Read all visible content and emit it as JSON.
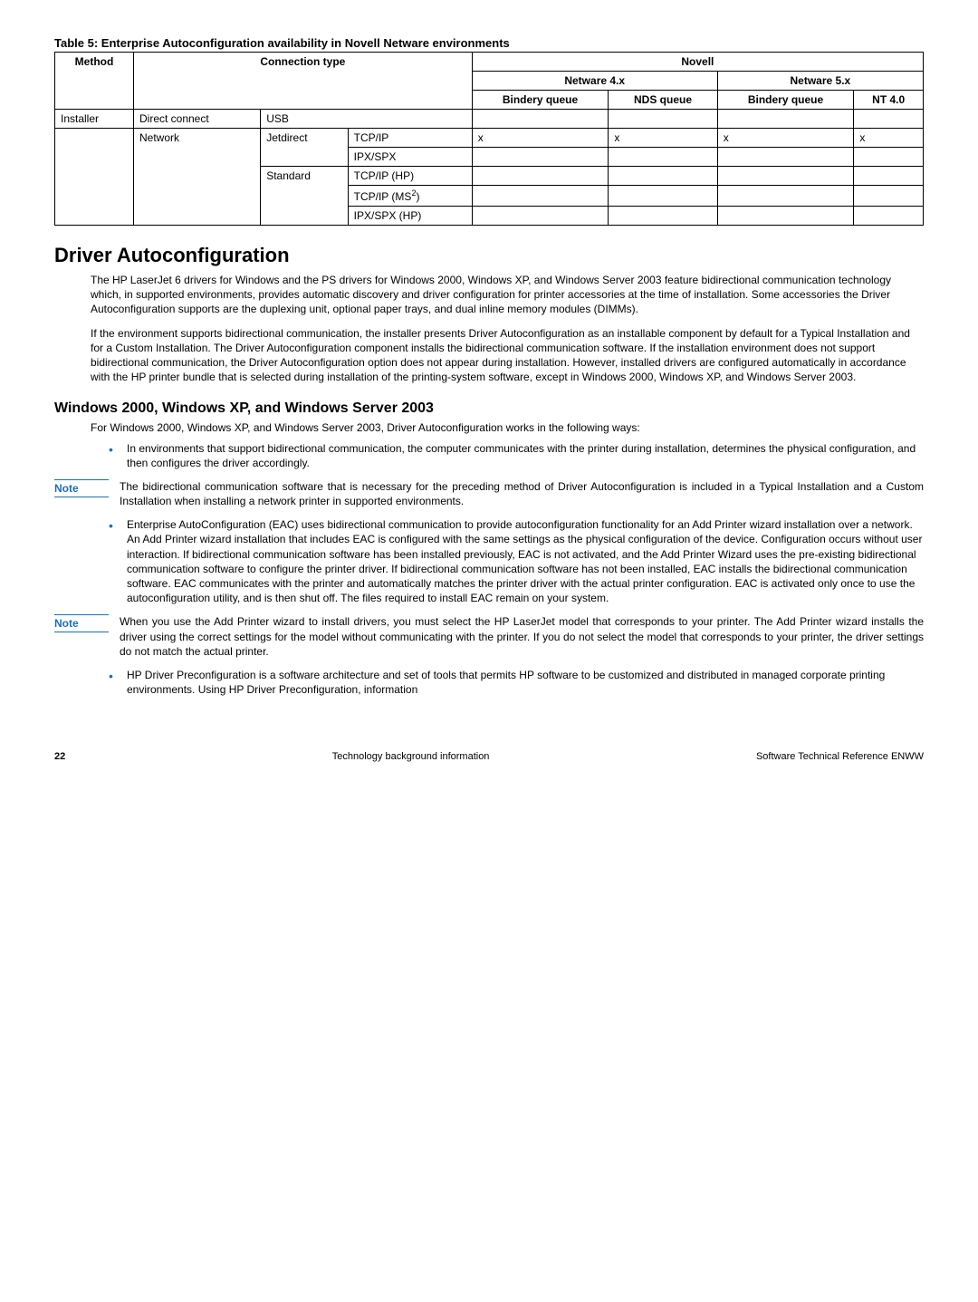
{
  "table": {
    "caption": "Table 5: Enterprise Autoconfiguration availability in Novell Netware environments",
    "headers": {
      "method": "Method",
      "connection_type": "Connection type",
      "novell": "Novell",
      "netware4": "Netware 4.x",
      "netware5": "Netware 5.x",
      "bindery_queue": "Bindery queue",
      "nds_queue": "NDS queue",
      "bindery_queue2": "Bindery queue",
      "nt40": "NT 4.0"
    },
    "rows": {
      "installer": "Installer",
      "direct_connect": "Direct connect",
      "usb": "USB",
      "network": "Network",
      "jetdirect": "Jetdirect",
      "tcpip": "TCP/IP",
      "ipxspx": "IPX/SPX",
      "standard": "Standard",
      "tcpip_hp": "TCP/IP (HP)",
      "tcpip_ms2": "TCP/IP (MS",
      "ms2_suffix": ")",
      "ipxspx_hp": "IPX/SPX (HP)",
      "x": "x"
    }
  },
  "h1": "Driver Autoconfiguration",
  "p1": "The HP LaserJet 6 drivers for Windows and the PS drivers for Windows 2000, Windows XP, and Windows Server 2003 feature bidirectional communication technology which, in supported environments, provides automatic discovery and driver configuration for printer accessories at the time of installation. Some accessories the Driver Autoconfiguration supports are the duplexing unit, optional paper trays, and dual inline memory modules (DIMMs).",
  "p2": "If the environment supports bidirectional communication, the installer presents Driver Autoconfiguration as an installable component by default for a Typical Installation and for a Custom Installation. The Driver Autoconfiguration component installs the bidirectional communication software. If the installation environment does not support bidirectional communication, the Driver Autoconfiguration option does not appear during installation. However, installed drivers are configured automatically in accordance with the HP printer bundle that is selected during installation of the printing-system software, except in Windows 2000, Windows XP, and Windows Server 2003.",
  "h2": "Windows 2000, Windows XP, and Windows Server 2003",
  "p3": "For Windows 2000, Windows XP, and Windows Server 2003, Driver Autoconfiguration works in the following ways:",
  "bullet1": "In environments that support bidirectional communication, the computer communicates with the printer during installation, determines the physical configuration, and then configures the driver accordingly.",
  "note_label": "Note",
  "note1": "The bidirectional communication software that is necessary for the preceding method of Driver Autoconfiguration is included in a Typical Installation and a Custom Installation when installing a network printer in supported environments.",
  "bullet2": "Enterprise AutoConfiguration (EAC) uses bidirectional communication to provide autoconfiguration functionality for an Add Printer wizard installation over a network. An Add Printer wizard installation that includes EAC is configured with the same settings as the physical configuration of the device. Configuration occurs without user interaction. If bidirectional communication software has been installed previously, EAC is not activated, and the Add Printer Wizard uses the pre-existing bidirectional communication software to configure the printer driver. If bidirectional communication software has not been installed, EAC installs the bidirectional communication software. EAC communicates with the printer and automatically matches the printer driver with the actual printer configuration. EAC is activated only once to use the autoconfiguration utility, and is then shut off. The files required to install EAC remain on your system.",
  "note2": "When you use the Add Printer wizard to install drivers, you must select the HP LaserJet model that corresponds to your printer. The Add Printer wizard installs the driver using the correct settings for the model without communicating with the printer. If you do not select the model that corresponds to your printer, the driver settings do not match the actual printer.",
  "bullet3": "HP Driver Preconfiguration is a software architecture and set of tools that permits HP software to be customized and distributed in managed corporate printing environments. Using HP Driver Preconfiguration, information",
  "footer": {
    "page": "22",
    "center": "Technology background information",
    "right": "Software Technical Reference ENWW"
  }
}
